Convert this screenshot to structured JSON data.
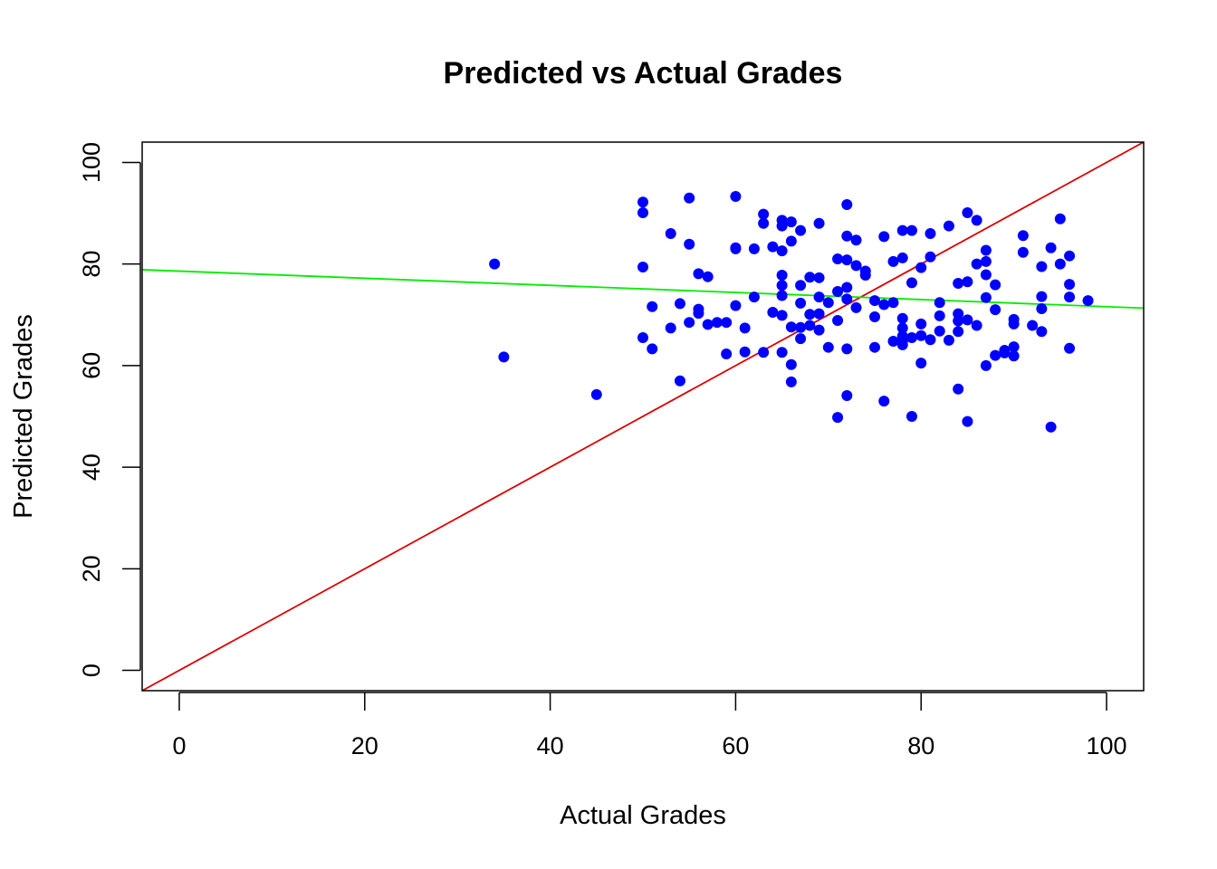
{
  "chart_data": {
    "type": "scatter",
    "title": "Predicted vs Actual Grades",
    "xlabel": "Actual Grades",
    "ylabel": "Predicted Grades",
    "xlim": [
      -4,
      104
    ],
    "ylim": [
      -4,
      104
    ],
    "x_ticks": [
      0,
      20,
      40,
      60,
      80,
      100
    ],
    "y_ticks": [
      0,
      20,
      40,
      60,
      80,
      100
    ],
    "x_tick_labels": [
      "0",
      "20",
      "40",
      "60",
      "80",
      "100"
    ],
    "y_tick_labels": [
      "0",
      "20",
      "40",
      "60",
      "80",
      "100"
    ],
    "grid": false,
    "legend": "none",
    "point_color": "#0000ff",
    "reference_line": {
      "intercept": 0,
      "slope": 1,
      "color": "#dd0000"
    },
    "fit_line": {
      "intercept": 78.6,
      "slope": -0.07,
      "color": "#00ee00"
    },
    "points": [
      [
        34,
        80
      ],
      [
        35,
        61.7
      ],
      [
        45,
        54.3
      ],
      [
        50,
        92.2
      ],
      [
        50,
        90.1
      ],
      [
        50,
        79.4
      ],
      [
        50,
        65.5
      ],
      [
        51,
        71.6
      ],
      [
        51,
        63.3
      ],
      [
        53,
        86
      ],
      [
        53,
        67.4
      ],
      [
        54,
        72.2
      ],
      [
        54,
        57
      ],
      [
        55,
        93
      ],
      [
        55,
        83.9
      ],
      [
        55,
        68.5
      ],
      [
        56,
        78.1
      ],
      [
        56,
        71.1
      ],
      [
        56,
        70.3
      ],
      [
        57,
        77.5
      ],
      [
        57,
        68.1
      ],
      [
        58,
        68.5
      ],
      [
        59,
        68.5
      ],
      [
        59,
        62.3
      ],
      [
        60,
        93.3
      ],
      [
        60,
        83.2
      ],
      [
        60,
        83
      ],
      [
        60,
        71.8
      ],
      [
        61,
        67.4
      ],
      [
        61,
        62.7
      ],
      [
        62,
        83
      ],
      [
        62,
        73.5
      ],
      [
        63,
        89.8
      ],
      [
        63,
        88
      ],
      [
        63,
        62.6
      ],
      [
        64,
        83.4
      ],
      [
        64,
        70.5
      ],
      [
        65,
        88.6
      ],
      [
        65,
        87.5
      ],
      [
        65,
        82.6
      ],
      [
        65,
        77.8
      ],
      [
        65,
        75.8
      ],
      [
        65,
        73.8
      ],
      [
        65,
        69.9
      ],
      [
        65,
        62.6
      ],
      [
        66,
        88.3
      ],
      [
        66,
        84.5
      ],
      [
        66,
        67.6
      ],
      [
        66,
        60.2
      ],
      [
        66,
        56.8
      ],
      [
        67,
        86.6
      ],
      [
        67,
        75.8
      ],
      [
        67,
        72.3
      ],
      [
        67,
        67.5
      ],
      [
        67,
        65.3
      ],
      [
        68,
        77.4
      ],
      [
        68,
        70.1
      ],
      [
        68,
        67.9
      ],
      [
        69,
        88
      ],
      [
        69,
        77.3
      ],
      [
        69,
        73.5
      ],
      [
        69,
        70.2
      ],
      [
        69,
        67
      ],
      [
        70,
        72.4
      ],
      [
        70,
        63.6
      ],
      [
        71,
        81
      ],
      [
        71,
        74.6
      ],
      [
        71,
        68.9
      ],
      [
        71,
        49.8
      ],
      [
        72,
        91.7
      ],
      [
        72,
        85.5
      ],
      [
        72,
        80.8
      ],
      [
        72,
        75.4
      ],
      [
        72,
        73.1
      ],
      [
        72,
        63.3
      ],
      [
        72,
        54.1
      ],
      [
        73,
        84.7
      ],
      [
        73,
        79.7
      ],
      [
        73,
        71.4
      ],
      [
        74,
        78.6
      ],
      [
        74,
        77.8
      ],
      [
        75,
        72.8
      ],
      [
        75,
        69.6
      ],
      [
        75,
        63.6
      ],
      [
        76,
        85.4
      ],
      [
        76,
        72
      ],
      [
        76,
        53
      ],
      [
        77,
        80.5
      ],
      [
        77,
        72.4
      ],
      [
        77,
        64.8
      ],
      [
        78,
        86.6
      ],
      [
        78,
        81.2
      ],
      [
        78,
        69.3
      ],
      [
        78,
        67.4
      ],
      [
        78,
        65.8
      ],
      [
        78,
        64.8
      ],
      [
        78,
        64.1
      ],
      [
        79,
        86.6
      ],
      [
        79,
        76.3
      ],
      [
        79,
        65.5
      ],
      [
        79,
        50
      ],
      [
        80,
        79.3
      ],
      [
        80,
        68.2
      ],
      [
        80,
        65.9
      ],
      [
        80,
        60.5
      ],
      [
        81,
        86
      ],
      [
        81,
        81.4
      ],
      [
        81,
        65.1
      ],
      [
        82,
        72.4
      ],
      [
        82,
        69.8
      ],
      [
        82,
        66.8
      ],
      [
        83,
        87.5
      ],
      [
        83,
        65
      ],
      [
        84,
        76.2
      ],
      [
        84,
        70.2
      ],
      [
        84,
        68.8
      ],
      [
        84,
        66.7
      ],
      [
        84,
        55.4
      ],
      [
        85,
        90.1
      ],
      [
        85,
        76.5
      ],
      [
        85,
        69
      ],
      [
        85,
        49
      ],
      [
        86,
        88.6
      ],
      [
        86,
        80
      ],
      [
        86,
        67.9
      ],
      [
        87,
        82.7
      ],
      [
        87,
        80.5
      ],
      [
        87,
        77.9
      ],
      [
        87,
        73.4
      ],
      [
        87,
        60
      ],
      [
        88,
        75.9
      ],
      [
        88,
        71
      ],
      [
        88,
        62
      ],
      [
        89,
        63
      ],
      [
        89,
        62.5
      ],
      [
        90,
        69.1
      ],
      [
        90,
        68.2
      ],
      [
        90,
        63.7
      ],
      [
        90,
        61.9
      ],
      [
        91,
        85.6
      ],
      [
        91,
        82.3
      ],
      [
        92,
        67.9
      ],
      [
        93,
        79.5
      ],
      [
        93,
        73.6
      ],
      [
        93,
        71.2
      ],
      [
        93,
        66.7
      ],
      [
        94,
        83.2
      ],
      [
        94,
        47.9
      ],
      [
        95,
        88.9
      ],
      [
        95,
        80
      ],
      [
        96,
        81.6
      ],
      [
        96,
        76
      ],
      [
        96,
        73.5
      ],
      [
        96,
        63.4
      ],
      [
        98,
        72.8
      ]
    ]
  }
}
